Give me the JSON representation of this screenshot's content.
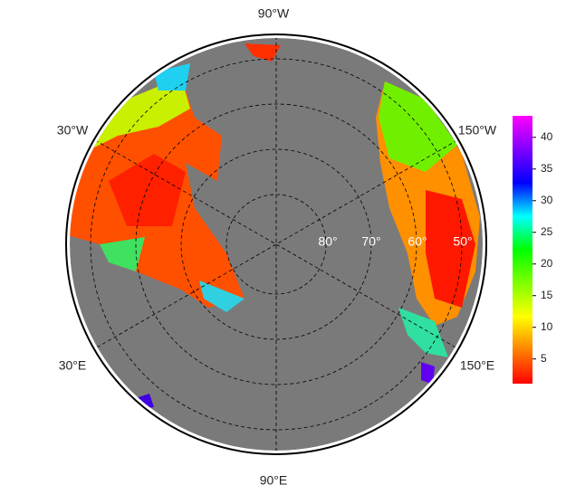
{
  "map": {
    "longitude_labels": [
      "90°W",
      "30°W",
      "150°W",
      "30°E",
      "150°E",
      "90°E"
    ],
    "latitude_labels": [
      "80°",
      "70°",
      "60°",
      "50°"
    ]
  },
  "colorbar": {
    "lim": [
      1.1,
      43.4
    ],
    "ticks": [
      5,
      10,
      15,
      20,
      25,
      30,
      35,
      40
    ],
    "colors": [
      "#ff0000",
      "#ff8000",
      "#ffff00",
      "#80ff00",
      "#00ff00",
      "#00ffff",
      "#0000ff",
      "#8000ff",
      "#ff00ff"
    ]
  }
}
